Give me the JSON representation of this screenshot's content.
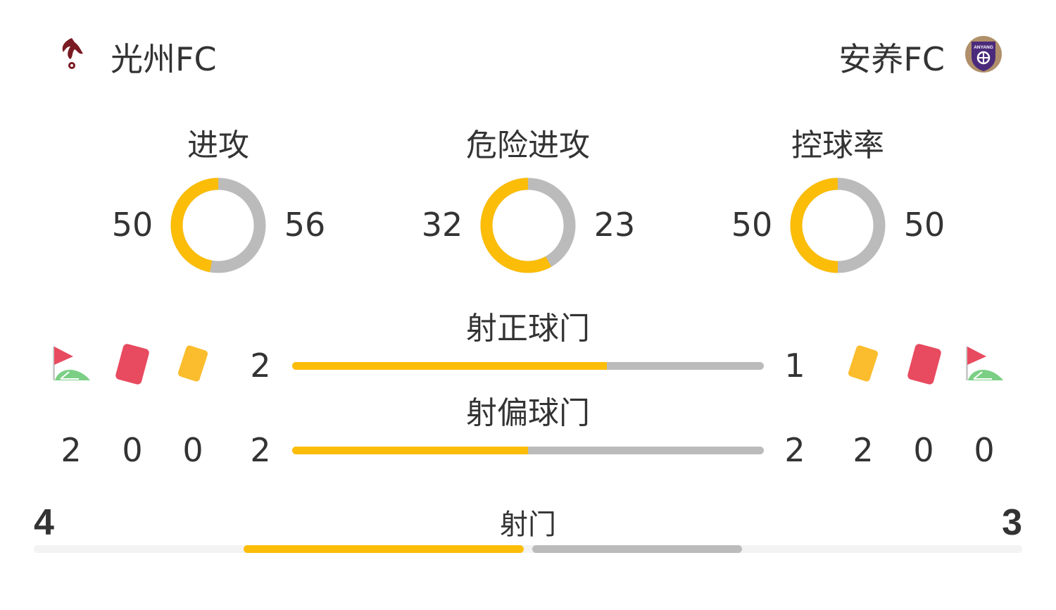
{
  "home": {
    "name": "光州FC",
    "logo_icon": "gwangju-phoenix-crest",
    "logo_color": "#7a1a22"
  },
  "away": {
    "name": "安养FC",
    "logo_icon": "anyang-crest",
    "logo_text": "ANYANG",
    "logo_color": "#4b2a7b"
  },
  "colors": {
    "home": "#fbbd08",
    "away": "#bbbbbb",
    "track": "#f3f3f3"
  },
  "donuts": [
    {
      "label": "进攻",
      "home": 50,
      "away": 56
    },
    {
      "label": "危险进攻",
      "home": 32,
      "away": 23
    },
    {
      "label": "控球率",
      "home": 50,
      "away": 50
    }
  ],
  "bars": [
    {
      "label": "射正球门",
      "home": 2,
      "away": 1
    },
    {
      "label": "射偏球门",
      "home": 2,
      "away": 2
    }
  ],
  "cards": {
    "home": {
      "corners": 2,
      "red": 0,
      "yellow": 0
    },
    "away": {
      "yellow": 2,
      "red": 0,
      "corners": 0
    }
  },
  "icons": {
    "corner": "corner-flag-icon",
    "red": "red-card-icon",
    "yellow": "yellow-card-icon"
  },
  "shots": {
    "label": "射门",
    "home": 4,
    "away": 3
  }
}
